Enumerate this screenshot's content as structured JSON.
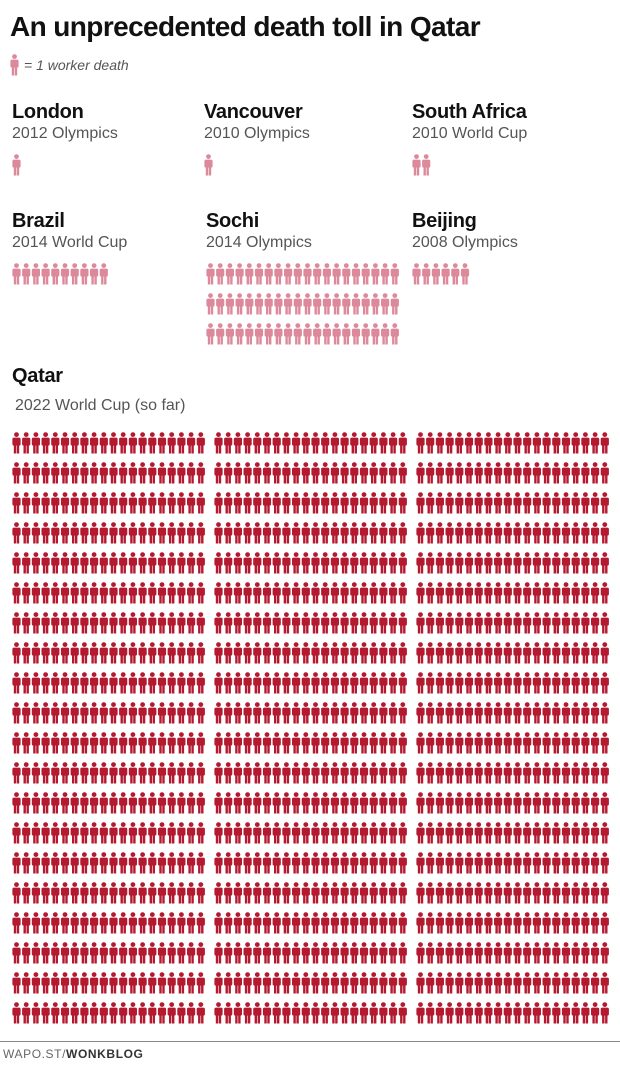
{
  "title": "An unprecedented death toll in Qatar",
  "legend": {
    "text": "= 1 worker death",
    "icon": "person-icon"
  },
  "colors": {
    "past_events": "#dc8a9b",
    "qatar": "#b3192f"
  },
  "chart_data": {
    "type": "pictograph",
    "title": "An unprecedented death toll in Qatar",
    "unit": "1 worker death",
    "series": [
      {
        "name": "London",
        "event": "2012 Olympics",
        "value": 1
      },
      {
        "name": "Vancouver",
        "event": "2010 Olympics",
        "value": 1
      },
      {
        "name": "South Africa",
        "event": "2010 World Cup",
        "value": 2
      },
      {
        "name": "Brazil",
        "event": "2014 World Cup",
        "value": 10
      },
      {
        "name": "Sochi",
        "event": "2014 Olympics",
        "value": 60
      },
      {
        "name": "Beijing",
        "event": "2008 Olympics",
        "value": 6
      },
      {
        "name": "Qatar",
        "event": "2022 World Cup (so far)",
        "value": 1200
      }
    ]
  },
  "footer": {
    "prefix": "WAPO.ST/",
    "brand": "WONKBLOG"
  }
}
